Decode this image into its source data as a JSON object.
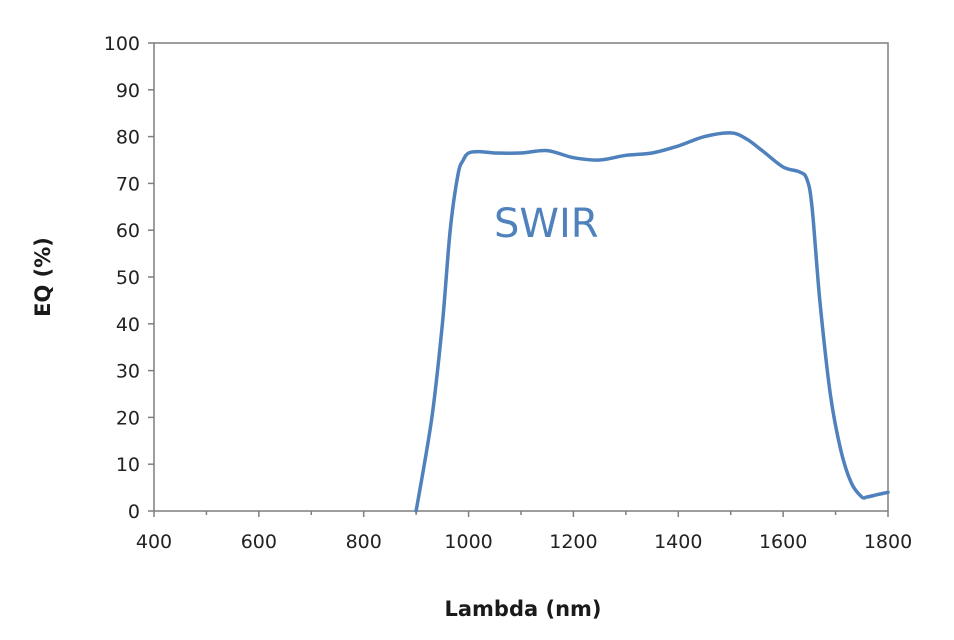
{
  "chart_data": {
    "type": "line",
    "title": "",
    "xlabel": "Lambda (nm)",
    "ylabel": "EQ (%)",
    "xlim": [
      400,
      1800
    ],
    "ylim": [
      0,
      100
    ],
    "xticks": [
      400,
      600,
      800,
      1000,
      1200,
      1400,
      1600,
      1800
    ],
    "yticks": [
      0,
      10,
      20,
      30,
      40,
      50,
      60,
      70,
      80,
      90,
      100
    ],
    "grid": false,
    "legend": "none",
    "annotation": "SWIR",
    "line_color": "#4f81bd",
    "series": [
      {
        "x": [
          900,
          930,
          950,
          965,
          980,
          990,
          1000,
          1020,
          1050,
          1100,
          1150,
          1200,
          1250,
          1300,
          1350,
          1400,
          1450,
          1500,
          1530,
          1560,
          1600,
          1630,
          1645,
          1655,
          1670,
          1690,
          1710,
          1730,
          1750,
          1760,
          1780,
          1800
        ],
        "y": [
          0,
          20,
          40,
          60,
          72,
          75,
          76.5,
          76.8,
          76.5,
          76.5,
          77,
          75.5,
          75,
          76,
          76.5,
          78,
          80,
          80.8,
          79.5,
          77,
          73.5,
          72.5,
          71,
          65,
          45,
          25,
          13,
          6,
          3,
          3,
          3.5,
          4
        ]
      }
    ]
  }
}
